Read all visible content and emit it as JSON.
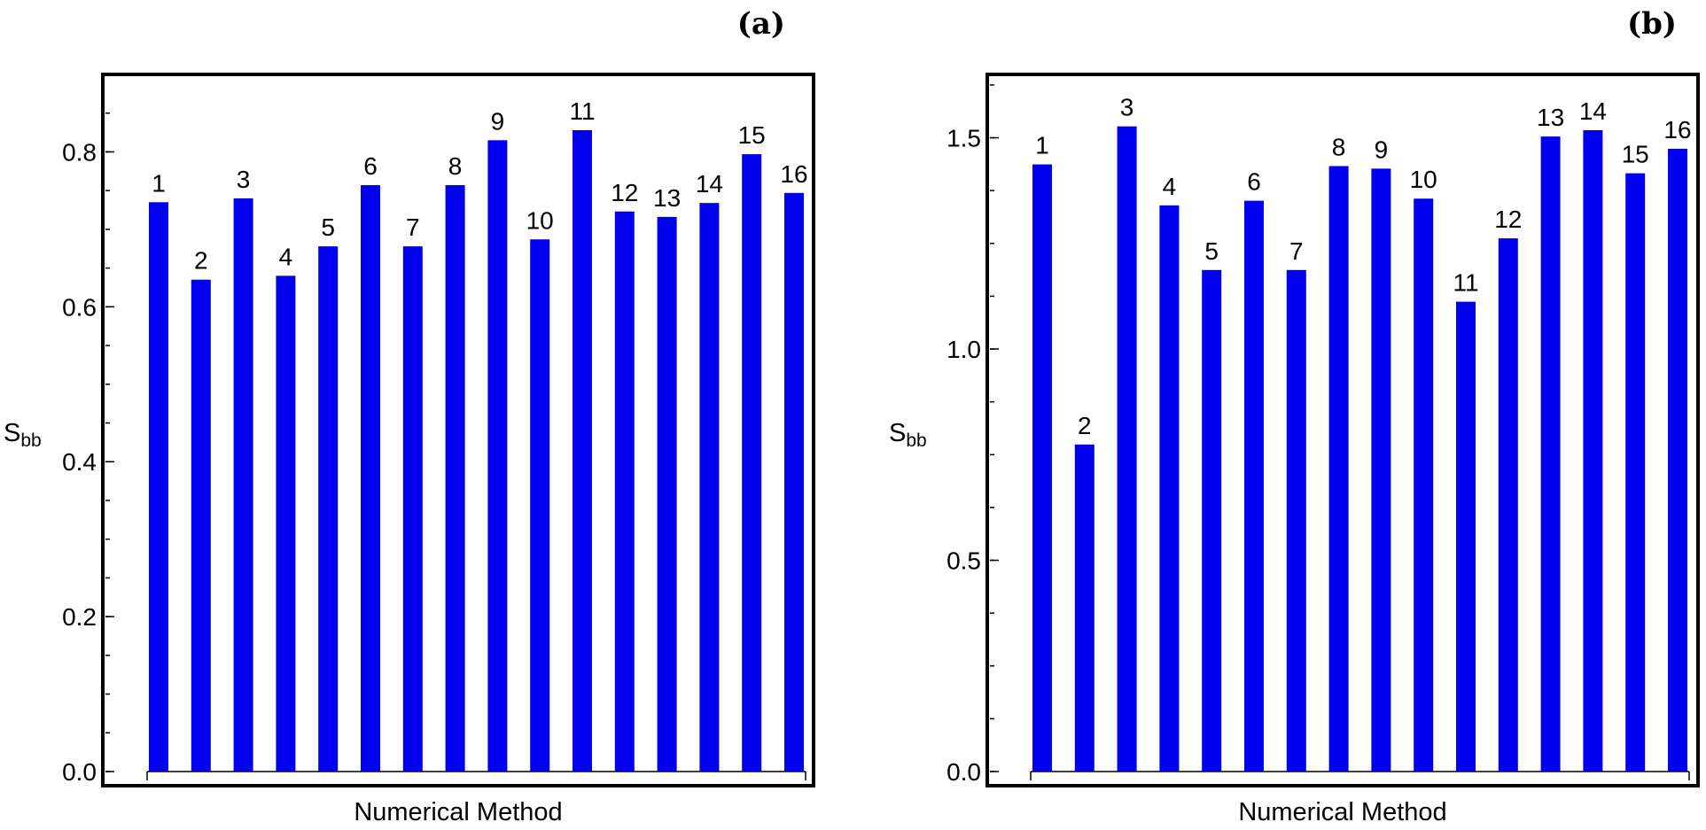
{
  "colors": {
    "bar": "#0000ee",
    "frame": "#000000"
  },
  "chart_data": [
    {
      "type": "bar",
      "panel_label": "(a)",
      "xlabel": "Numerical Method",
      "ylabel_main": "S",
      "ylabel_sub": "bb",
      "ylim": [
        0,
        0.9
      ],
      "yticks": [
        0.0,
        0.2,
        0.4,
        0.6,
        0.8
      ],
      "ytick_labels": [
        "0.0",
        "0.2",
        "0.4",
        "0.6",
        "0.8"
      ],
      "categories": [
        "1",
        "2",
        "3",
        "4",
        "5",
        "6",
        "7",
        "8",
        "9",
        "10",
        "11",
        "12",
        "13",
        "14",
        "15",
        "16"
      ],
      "values": [
        0.735,
        0.635,
        0.74,
        0.64,
        0.678,
        0.757,
        0.678,
        0.757,
        0.815,
        0.687,
        0.828,
        0.723,
        0.716,
        0.734,
        0.797,
        0.747
      ]
    },
    {
      "type": "bar",
      "panel_label": "(b)",
      "xlabel": "Numerical Method",
      "ylabel_main": "S",
      "ylabel_sub": "bb",
      "ylim": [
        0,
        1.65
      ],
      "yticks": [
        0.0,
        0.5,
        1.0,
        1.5
      ],
      "ytick_labels": [
        "0.0",
        "0.5",
        "1.0",
        "1.5"
      ],
      "categories": [
        "1",
        "2",
        "3",
        "4",
        "5",
        "6",
        "7",
        "8",
        "9",
        "10",
        "11",
        "12",
        "13",
        "14",
        "15",
        "16"
      ],
      "values": [
        1.437,
        0.774,
        1.527,
        1.34,
        1.187,
        1.351,
        1.187,
        1.433,
        1.427,
        1.356,
        1.112,
        1.262,
        1.503,
        1.518,
        1.416,
        1.474
      ]
    }
  ]
}
